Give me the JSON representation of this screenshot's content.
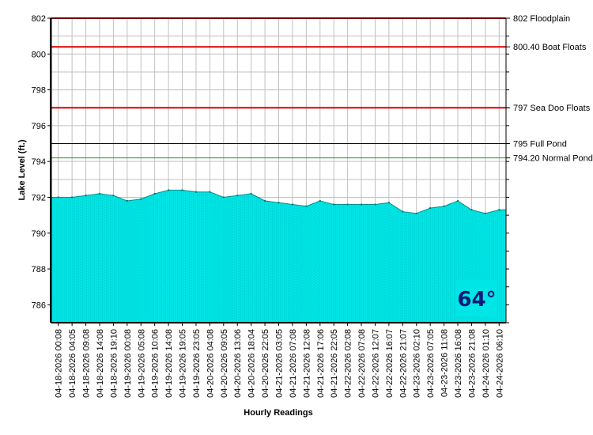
{
  "chart_data": {
    "type": "area",
    "xlabel": "Hourly Readings",
    "ylabel": "Lake Level (ft.)",
    "ylim": [
      785,
      802
    ],
    "yticks": [
      786,
      788,
      790,
      792,
      794,
      796,
      798,
      800,
      802
    ],
    "grid": true,
    "area_color": "#00e5e5",
    "categories": [
      "04-18-2026 00:08",
      "04-18-2026 04:05",
      "04-18-2026 09:08",
      "04-18-2026 14:08",
      "04-18-2026 19:10",
      "04-19-2026 00:08",
      "04-19-2026 05:08",
      "04-19-2026 10:06",
      "04-19-2026 14:08",
      "04-19-2026 19:05",
      "04-19-2026 23:05",
      "04-20-2026 04:08",
      "04-20-2026 09:05",
      "04-20-2026 13:06",
      "04-20-2026 18:04",
      "04-20-2026 22:05",
      "04-21-2026 03:05",
      "04-21-2026 07:08",
      "04-21-2026 12:08",
      "04-21-2026 17:06",
      "04-21-2026 22:05",
      "04-22-2026 02:08",
      "04-22-2026 07:08",
      "04-22-2026 12:07",
      "04-22-2026 16:07",
      "04-22-2026 21:07",
      "04-23-2026 02:10",
      "04-23-2026 07:05",
      "04-23-2026 11:08",
      "04-23-2026 16:08",
      "04-23-2026 21:08",
      "04-24-2026 01:10",
      "04-24-2026 06:10"
    ],
    "values": [
      792.0,
      792.0,
      792.1,
      792.2,
      792.1,
      791.8,
      791.9,
      792.2,
      792.4,
      792.4,
      792.3,
      792.3,
      792.0,
      792.1,
      792.2,
      791.8,
      791.7,
      791.6,
      791.5,
      791.8,
      791.6,
      791.6,
      791.6,
      791.6,
      791.7,
      791.2,
      791.1,
      791.4,
      791.5,
      791.8,
      791.3,
      791.1,
      791.3
    ],
    "series_name": "",
    "reference_lines": [
      {
        "value": 802,
        "label": "802 Floodplain",
        "color": "#dd0000"
      },
      {
        "value": 800.4,
        "label": "800.40 Boat Floats",
        "color": "#dd0000"
      },
      {
        "value": 797,
        "label": "797 Sea Doo Floats",
        "color": "#dd0000"
      },
      {
        "value": 795,
        "label": "795 Full Pond",
        "color": "#000080"
      },
      {
        "value": 794.2,
        "label": "794.20 Normal Pond",
        "color": "#2e8b2e"
      }
    ]
  },
  "temperature_badge": {
    "text": "64°",
    "bg_color": "#00e5e5",
    "text_color": "#0b1a78"
  }
}
